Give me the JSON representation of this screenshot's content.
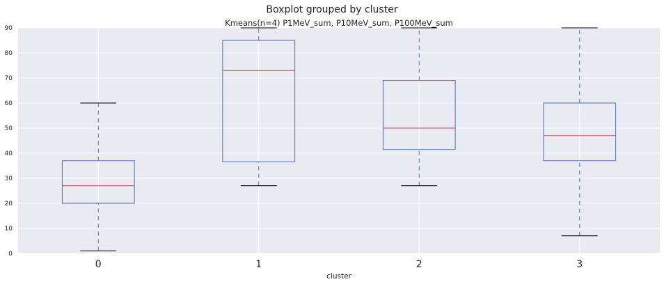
{
  "chart_data": {
    "type": "box",
    "suptitle": "Boxplot grouped by cluster",
    "title": "Kmeans(n=4) P1MeV_sum, P10MeV_sum, P100MeV_sum",
    "xlabel": "cluster",
    "ylabel": "",
    "ylim": [
      0,
      90
    ],
    "yticks": [
      0,
      10,
      20,
      30,
      40,
      50,
      60,
      70,
      80,
      90
    ],
    "grid": true,
    "categories": [
      "0",
      "1",
      "2",
      "3"
    ],
    "boxes": [
      {
        "name": "0",
        "whislo": 1,
        "q1": 20,
        "med": 27,
        "q3": 37,
        "whishi": 60
      },
      {
        "name": "1",
        "whislo": 27,
        "q1": 36.5,
        "med": 73,
        "q3": 85,
        "whishi": 90
      },
      {
        "name": "2",
        "whislo": 27,
        "q1": 41.5,
        "med": 50,
        "q3": 69,
        "whishi": 90
      },
      {
        "name": "3",
        "whislo": 7,
        "q1": 37,
        "med": 47,
        "q3": 60,
        "whishi": 90
      }
    ],
    "colors": {
      "background": "#eaeaf2",
      "grid": "#ffffff",
      "box": "#4c72b0",
      "median": "#c44e52",
      "cap": "#000000",
      "whisker": "#4c72b0"
    }
  }
}
